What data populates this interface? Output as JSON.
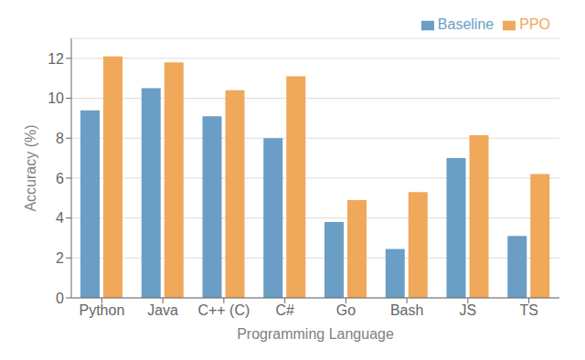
{
  "chart_data": {
    "type": "bar",
    "categories": [
      "Python",
      "Java",
      "C++ (C)",
      "C#",
      "Go",
      "Bash",
      "JS",
      "TS"
    ],
    "series": [
      {
        "name": "Baseline",
        "color": "#6a9ec4",
        "values": [
          9.4,
          10.5,
          9.1,
          8.0,
          3.8,
          2.45,
          7.0,
          3.1
        ]
      },
      {
        "name": "PPO",
        "color": "#f0a85a",
        "values": [
          12.1,
          11.8,
          10.4,
          11.1,
          4.9,
          5.3,
          8.15,
          6.2
        ]
      }
    ],
    "xlabel": "Programming Language",
    "ylabel": "Accuracy (%)",
    "ylim": [
      0,
      13
    ],
    "yticks": [
      0,
      2,
      4,
      6,
      8,
      10,
      12
    ],
    "grid": true,
    "legend": "upper right"
  }
}
